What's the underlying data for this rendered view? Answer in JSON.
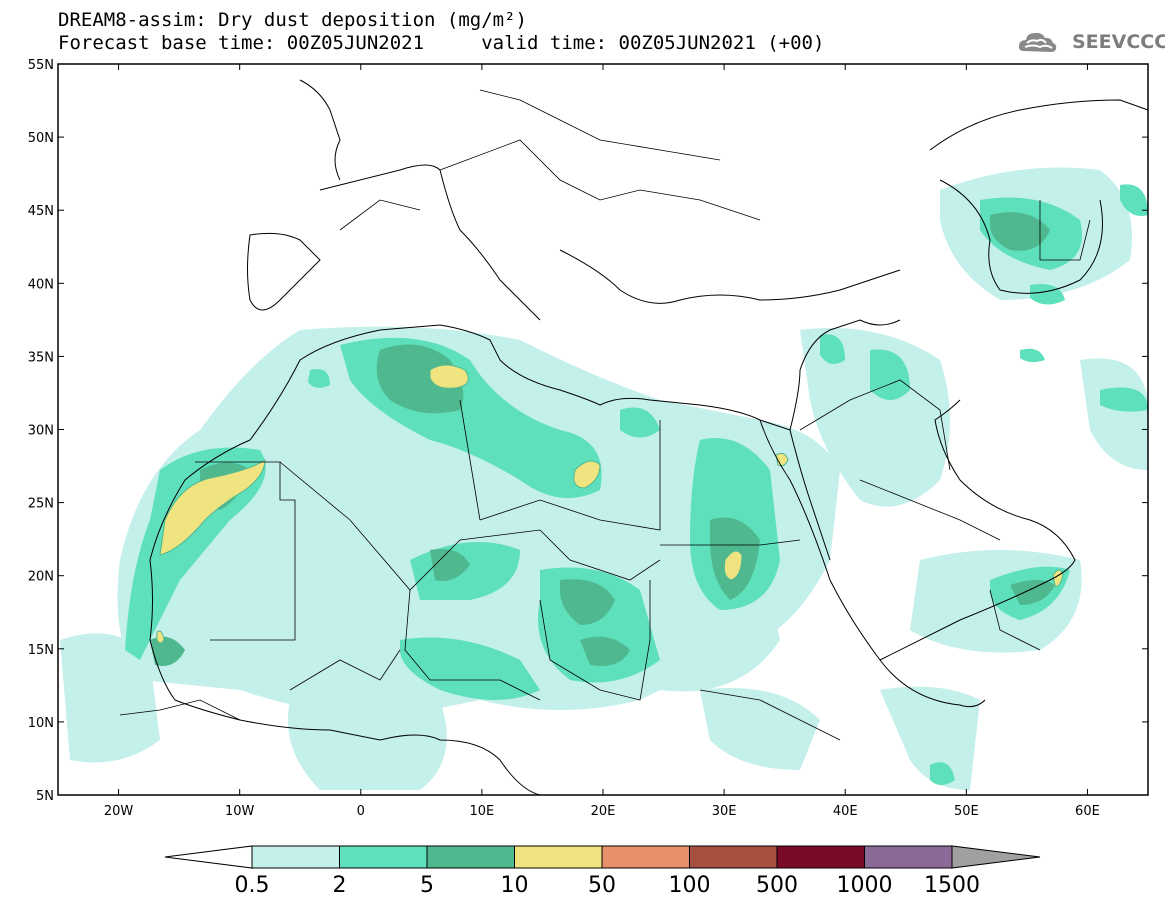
{
  "title": {
    "line1": "DREAM8-assim: Dry dust deposition (mg/m²)",
    "line2": "Forecast base time: 00Z05JUN2021     valid time: 00Z05JUN2021 (+00)"
  },
  "logo": {
    "text": "SEEVCCC",
    "icon": "cloud-icon"
  },
  "map": {
    "region": {
      "lon": [
        -25,
        65
      ],
      "lat": [
        5,
        55
      ]
    },
    "lat_labels": [
      "55N",
      "50N",
      "45N",
      "40N",
      "35N",
      "30N",
      "25N",
      "20N",
      "15N",
      "10N",
      "5N"
    ],
    "lat_values": [
      55,
      50,
      45,
      40,
      35,
      30,
      25,
      20,
      15,
      10,
      5
    ],
    "lon_labels": [
      "20W",
      "10W",
      "0",
      "10E",
      "20E",
      "30E",
      "40E",
      "50E",
      "60E"
    ],
    "lon_values": [
      -20,
      -10,
      0,
      10,
      20,
      30,
      40,
      50,
      60
    ]
  },
  "legend": {
    "labels": [
      "0.5",
      "2",
      "5",
      "10",
      "50",
      "100",
      "500",
      "1000",
      "1500"
    ],
    "colors": [
      "#c3f0ea",
      "#5fe0bd",
      "#4fb88f",
      "#f0e481",
      "#e8906b",
      "#a6503f",
      "#7a0a28",
      "#8b6a9a"
    ],
    "under_color": "#ffffff",
    "over_color": "#a0a0a0"
  }
}
